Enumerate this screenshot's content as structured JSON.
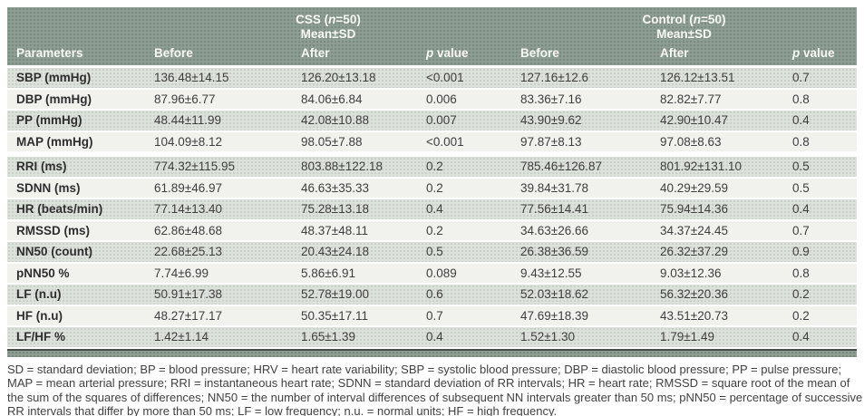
{
  "table": {
    "groups": [
      {
        "title_pre": "CSS (",
        "title_n": "n",
        "title_post": "=50)",
        "subtitle": "Mean±SD"
      },
      {
        "title_pre": "Control (",
        "title_n": "n",
        "title_post": "=50)",
        "subtitle": "Mean±SD"
      }
    ],
    "columns": {
      "parameters": "Parameters",
      "before_css": "Before",
      "after_css": "After",
      "p_italic_css": "p",
      "p_rest_css": " value",
      "before_control": "Before",
      "after_control": "After",
      "p_italic_control": "p",
      "p_rest_control": " value"
    },
    "rows": [
      {
        "param": "SBP (mmHg)",
        "values": [
          "136.48±14.15",
          "126.20±13.18",
          "<0.001",
          "127.16±12.6",
          "126.12±13.51",
          "0.7"
        ],
        "gap_after": false
      },
      {
        "param": "DBP (mmHg)",
        "values": [
          "87.96±6.77",
          "84.06±6.84",
          "0.006",
          "83.36±7.16",
          "82.82±7.77",
          "0.8"
        ],
        "gap_after": false
      },
      {
        "param": "PP (mmHg)",
        "values": [
          "48.44±11.99",
          "42.08±10.88",
          "0.007",
          "43.90±9.62",
          "42.90±10.47",
          "0.4"
        ],
        "gap_after": false
      },
      {
        "param": "MAP (mmHg)",
        "values": [
          "104.09±8.12",
          "98.05±7.88",
          "<0.001",
          "97.87±8.13",
          "97.08±8.63",
          "0.8"
        ],
        "gap_after": true
      },
      {
        "param": "RRI (ms)",
        "values": [
          "774.32±115.95",
          "803.88±122.18",
          "0.2",
          "785.46±126.87",
          "801.92±131.10",
          "0.5"
        ],
        "gap_after": false
      },
      {
        "param": "SDNN (ms)",
        "values": [
          "61.89±46.97",
          "46.63±35.33",
          "0.2",
          "39.84±31.78",
          "40.29±29.59",
          "0.5"
        ],
        "gap_after": false
      },
      {
        "param": "HR (beats/min)",
        "values": [
          "77.14±13.40",
          "75.28±13.18",
          "0.4",
          "77.56±14.41",
          "75.94±14.36",
          "0.4"
        ],
        "gap_after": false
      },
      {
        "param": "RMSSD (ms)",
        "values": [
          "62.86±48.68",
          "48.37±48.11",
          "0.2",
          "34.63±26.66",
          "34.37±24.45",
          "0.7"
        ],
        "gap_after": false
      },
      {
        "param": "NN50 (count)",
        "values": [
          "22.68±25.13",
          "20.43±24.18",
          "0.5",
          "26.38±36.59",
          "26.32±37.29",
          "0.9"
        ],
        "gap_after": false
      },
      {
        "param": "pNN50 %",
        "values": [
          "7.74±6.99",
          "5.86±6.91",
          "0.089",
          "9.43±12.55",
          "9.03±12.36",
          "0.8"
        ],
        "gap_after": false
      },
      {
        "param": "LF (n.u)",
        "values": [
          "50.91±17.38",
          "52.78±19.00",
          "0.6",
          "52.03±18.62",
          "56.32±20.36",
          "0.2"
        ],
        "gap_after": false
      },
      {
        "param": "HF (n.u)",
        "values": [
          "48.27±17.17",
          "50.35±17.11",
          "0.7",
          "47.69±18.39",
          "43.51±20.73",
          "0.2"
        ],
        "gap_after": false
      },
      {
        "param": "LF/HF %",
        "values": [
          "1.42±1.14",
          "1.65±1.39",
          "0.4",
          "1.52±1.30",
          "1.79±1.49",
          "0.4"
        ],
        "gap_after": false
      }
    ]
  },
  "footnote": {
    "lines": [
      "SD = standard deviation; BP = blood pressure; HRV = heart rate variability; SBP = systolic blood pressure; DBP = diastolic blood pressure; PP = pulse pressure;",
      "MAP = mean arterial pressure; RRI = instantaneous heart rate; SDNN = standard deviation of RR intervals; HR = heart rate; RMSSD = square root of the mean of",
      "the sum of the squares of differences; NN50 = the number of interval differences of subsequent NN intervals greater than 50 ms; pNN50 = percentage of successive",
      "RR intervals that differ by more than 50 ms; LF = low frequency; n.u. = normal units; HF = high frequency."
    ]
  },
  "colors": {
    "header_green": "#8e9d93",
    "stripe_dark": "#dde1db",
    "stripe_light": "#f1f2ee",
    "rule_dark": "#454d47"
  }
}
